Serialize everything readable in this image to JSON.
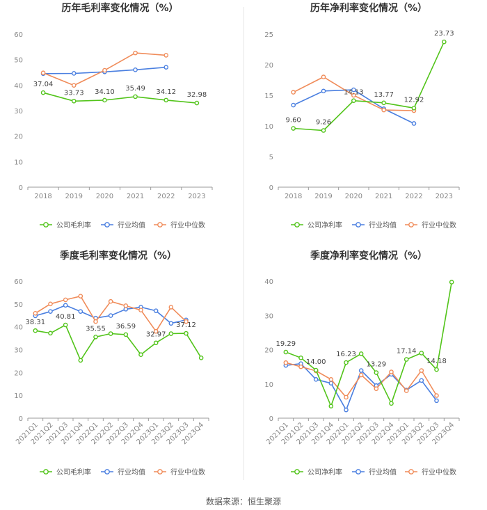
{
  "source": "数据来源：恒生聚源",
  "legend_labels": [
    "公司毛利率",
    "行业均值",
    "行业中位数"
  ],
  "chart_data": [
    {
      "type": "line",
      "title": "历年毛利率变化情况（%）",
      "categories": [
        "2018",
        "2019",
        "2020",
        "2021",
        "2022",
        "2023"
      ],
      "ylim": [
        0,
        60
      ],
      "yticks": [
        0,
        10,
        20,
        30,
        40,
        50,
        60
      ],
      "grid": false,
      "legend": "bottom",
      "series": [
        {
          "name": "公司毛利率",
          "color": "#52c41a",
          "values": [
            37.04,
            33.73,
            34.1,
            35.49,
            34.12,
            32.98
          ],
          "labels": [
            "37.04",
            "33.73",
            "34.10",
            "35.49",
            "34.12",
            "32.98"
          ]
        },
        {
          "name": "行业均值",
          "color": "#4a7fe0",
          "values": [
            44.5,
            44.6,
            45.2,
            46.0,
            47.0,
            null
          ]
        },
        {
          "name": "行业中位数",
          "color": "#f08c5a",
          "values": [
            44.8,
            39.9,
            45.8,
            52.6,
            51.7,
            null
          ]
        }
      ]
    },
    {
      "type": "line",
      "title": "历年净利率变化情况（%）",
      "categories": [
        "2018",
        "2019",
        "2020",
        "2021",
        "2022",
        "2023"
      ],
      "ylim": [
        0,
        25
      ],
      "yticks": [
        0,
        5,
        10,
        15,
        20,
        25
      ],
      "grid": false,
      "legend": "bottom",
      "series": [
        {
          "name": "公司净利率",
          "color": "#52c41a",
          "values": [
            9.6,
            9.26,
            14.13,
            13.77,
            12.92,
            23.73
          ],
          "labels": [
            "9.60",
            "9.26",
            "14.13",
            "13.77",
            "12.92",
            "23.73"
          ]
        },
        {
          "name": "行业均值",
          "color": "#4a7fe0",
          "values": [
            13.4,
            15.7,
            15.9,
            12.8,
            10.4,
            null
          ]
        },
        {
          "name": "行业中位数",
          "color": "#f08c5a",
          "values": [
            15.5,
            18.0,
            15.0,
            12.6,
            12.5,
            null
          ]
        }
      ]
    },
    {
      "type": "line",
      "title": "季度毛利率变化情况（%）",
      "categories": [
        "2021Q1",
        "2021Q2",
        "2021Q3",
        "2021Q4",
        "2022Q1",
        "2022Q2",
        "2022Q3",
        "2022Q4",
        "2023Q1",
        "2023Q2",
        "2023Q3",
        "2023Q4"
      ],
      "ylim": [
        0,
        60
      ],
      "yticks": [
        0,
        10,
        20,
        30,
        40,
        50,
        60
      ],
      "grid": false,
      "legend": "bottom",
      "series": [
        {
          "name": "公司毛利率",
          "color": "#52c41a",
          "values": [
            38.31,
            37.2,
            40.81,
            25.3,
            35.55,
            37.0,
            36.59,
            27.8,
            32.97,
            37.0,
            37.12,
            26.4
          ],
          "labels": [
            "38.31",
            null,
            "40.81",
            null,
            "35.55",
            null,
            "36.59",
            null,
            "32.97",
            null,
            "37.12",
            null
          ]
        },
        {
          "name": "行业均值",
          "color": "#4a7fe0",
          "values": [
            44.8,
            46.7,
            49.4,
            46.7,
            43.8,
            44.9,
            47.7,
            48.6,
            47.0,
            41.5,
            43.0,
            null
          ]
        },
        {
          "name": "行业中位数",
          "color": "#f08c5a",
          "values": [
            45.9,
            50.0,
            51.8,
            53.4,
            42.3,
            51.1,
            49.2,
            47.3,
            38.0,
            48.6,
            42.3,
            null
          ]
        }
      ]
    },
    {
      "type": "line",
      "title": "季度净利率变化情况（%）",
      "categories": [
        "2021Q1",
        "2021Q2",
        "2021Q3",
        "2021Q4",
        "2022Q1",
        "2022Q2",
        "2022Q3",
        "2022Q4",
        "2023Q1",
        "2023Q2",
        "2023Q3",
        "2023Q4"
      ],
      "ylim": [
        0,
        40
      ],
      "yticks": [
        0,
        10,
        20,
        30,
        40
      ],
      "grid": false,
      "legend": "bottom",
      "series": [
        {
          "name": "公司净利率",
          "color": "#52c41a",
          "values": [
            19.29,
            17.6,
            14.0,
            3.5,
            16.23,
            18.8,
            13.29,
            4.3,
            17.14,
            19.0,
            14.18,
            39.7
          ],
          "labels": [
            "19.29",
            null,
            "14.00",
            null,
            "16.23",
            null,
            "13.29",
            null,
            "17.14",
            null,
            "14.18",
            null
          ]
        },
        {
          "name": "行业均值",
          "color": "#4a7fe0",
          "values": [
            15.4,
            15.9,
            11.3,
            10.2,
            2.4,
            13.9,
            9.5,
            12.8,
            8.2,
            11.0,
            5.1,
            null
          ]
        },
        {
          "name": "行业中位数",
          "color": "#f08c5a",
          "values": [
            16.2,
            15.0,
            13.8,
            11.3,
            6.1,
            12.6,
            8.6,
            13.5,
            8.0,
            13.9,
            6.6,
            null
          ]
        }
      ]
    }
  ]
}
